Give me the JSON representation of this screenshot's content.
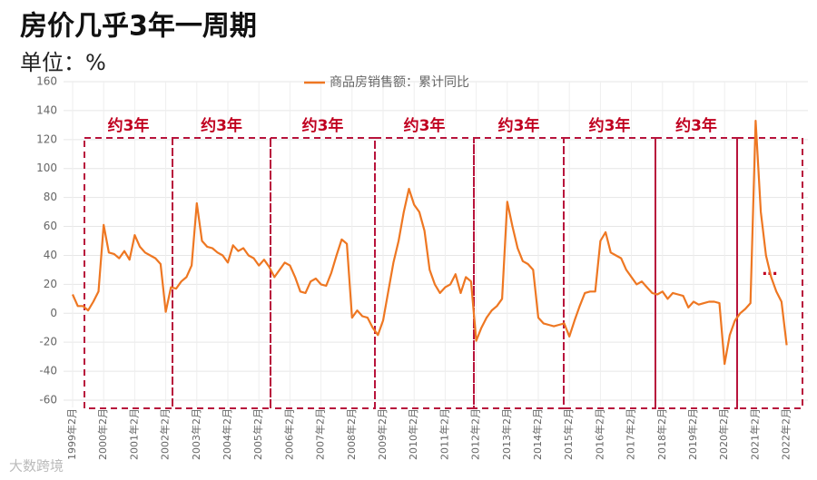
{
  "chart_data": {
    "type": "line",
    "title": "房价几乎3年一周期",
    "subtitle": "单位：%",
    "annotations": [
      "约3年",
      "约3年",
      "约3年",
      "约3年",
      "约3年",
      "约3年",
      "约3年",
      "…"
    ],
    "watermark": "大数跨境",
    "ylim": [
      -60,
      160
    ],
    "yticks": [
      -60,
      -40,
      -20,
      0,
      20,
      40,
      60,
      80,
      100,
      120,
      140,
      160
    ],
    "grid": true,
    "legend": "top",
    "categories": [
      "1999年2月",
      null,
      null,
      null,
      null,
      null,
      "2000年2月",
      null,
      null,
      null,
      null,
      null,
      "2001年2月",
      null,
      null,
      null,
      null,
      null,
      "2002年2月",
      null,
      null,
      null,
      null,
      null,
      "2003年2月",
      null,
      null,
      null,
      null,
      null,
      "2004年2月",
      null,
      null,
      null,
      null,
      null,
      "2005年2月",
      null,
      null,
      null,
      null,
      null,
      "2006年2月",
      null,
      null,
      null,
      null,
      null,
      "2007年2月",
      null,
      null,
      null,
      null,
      null,
      "2008年2月",
      null,
      null,
      null,
      null,
      null,
      "2009年2月",
      null,
      null,
      null,
      null,
      null,
      "2010年2月",
      null,
      null,
      null,
      null,
      null,
      "2011年2月",
      null,
      null,
      null,
      null,
      null,
      "2012年2月",
      null,
      null,
      null,
      null,
      null,
      "2013年2月",
      null,
      null,
      null,
      null,
      null,
      "2014年2月",
      null,
      null,
      null,
      null,
      null,
      "2015年2月",
      null,
      null,
      null,
      null,
      null,
      "2016年2月",
      null,
      null,
      null,
      null,
      null,
      "2017年2月",
      null,
      null,
      null,
      null,
      null,
      "2018年2月",
      null,
      null,
      null,
      null,
      null,
      "2019年2月",
      null,
      null,
      null,
      null,
      null,
      "2020年2月",
      null,
      null,
      null,
      null,
      null,
      "2021年2月",
      null,
      null,
      null,
      null,
      null,
      "2022年2月"
    ],
    "series": [
      {
        "name": "商品房销售额：累计同比",
        "color": "#ee7722",
        "values": [
          13,
          5,
          5,
          2,
          8,
          15,
          61,
          42,
          41,
          38,
          43,
          37,
          54,
          46,
          42,
          40,
          38,
          34,
          1,
          18,
          17,
          22,
          25,
          33,
          76,
          50,
          46,
          45,
          42,
          40,
          35,
          47,
          43,
          45,
          40,
          38,
          33,
          37,
          32,
          25,
          30,
          35,
          33,
          25,
          15,
          14,
          22,
          24,
          20,
          19,
          28,
          40,
          51,
          48,
          -3,
          2,
          -2,
          -3,
          -10,
          -15,
          -5,
          15,
          35,
          50,
          70,
          86,
          75,
          70,
          57,
          30,
          20,
          14,
          18,
          20,
          27,
          14,
          25,
          22,
          -19,
          -10,
          -3,
          2,
          5,
          10,
          77,
          60,
          45,
          36,
          34,
          30,
          -3,
          -7,
          -8,
          -9,
          -8,
          -7,
          -16,
          -5,
          5,
          14,
          15,
          15,
          50,
          56,
          42,
          40,
          38,
          30,
          25,
          20,
          22,
          18,
          14,
          13,
          15,
          10,
          14,
          13,
          12,
          4,
          8,
          6,
          7,
          8,
          8,
          7,
          -35,
          -15,
          -5,
          0,
          3,
          7,
          133,
          70,
          40,
          25,
          15,
          8,
          -22
        ]
      }
    ]
  }
}
